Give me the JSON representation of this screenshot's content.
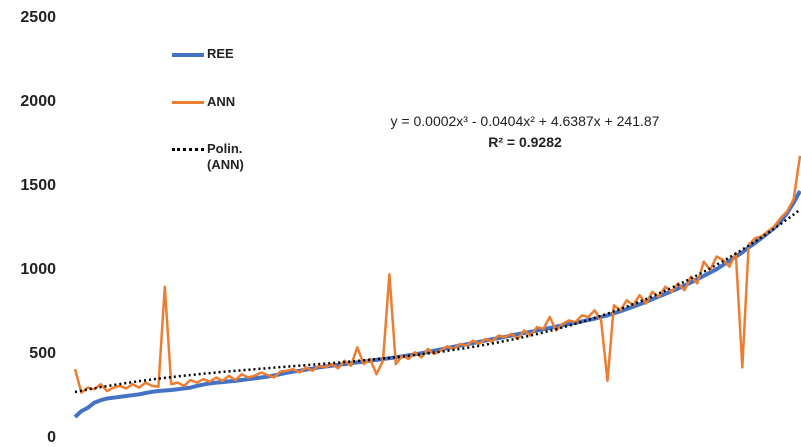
{
  "chart_data": {
    "type": "line",
    "ylim": [
      0,
      2500
    ],
    "yticks": [
      0,
      500,
      1000,
      1500,
      2000,
      2500
    ],
    "grid": false,
    "series": [
      {
        "name": "REE",
        "color": "#4472c4",
        "values": [
          125,
          160,
          180,
          210,
          225,
          235,
          240,
          245,
          250,
          255,
          260,
          268,
          275,
          280,
          283,
          286,
          290,
          295,
          300,
          310,
          318,
          325,
          330,
          333,
          337,
          340,
          345,
          350,
          355,
          360,
          365,
          372,
          380,
          388,
          395,
          400,
          407,
          413,
          420,
          425,
          430,
          435,
          440,
          445,
          450,
          455,
          460,
          465,
          470,
          475,
          480,
          486,
          492,
          498,
          505,
          512,
          520,
          527,
          535,
          542,
          550,
          557,
          565,
          572,
          580,
          588,
          595,
          602,
          610,
          618,
          625,
          632,
          640,
          648,
          655,
          663,
          670,
          678,
          686,
          694,
          702,
          710,
          720,
          730,
          742,
          755,
          768,
          782,
          796,
          810,
          826,
          842,
          858,
          874,
          890,
          908,
          926,
          945,
          965,
          985,
          1005,
          1030,
          1055,
          1080,
          1105,
          1135,
          1160,
          1190,
          1220,
          1250,
          1290,
          1340,
          1400,
          1470
        ]
      },
      {
        "name": "ANN",
        "color": "#ed7d31",
        "values": [
          410,
          270,
          300,
          290,
          320,
          280,
          300,
          310,
          295,
          320,
          300,
          330,
          310,
          305,
          900,
          320,
          330,
          310,
          345,
          330,
          350,
          335,
          360,
          340,
          370,
          345,
          380,
          360,
          370,
          390,
          375,
          360,
          395,
          400,
          410,
          390,
          420,
          400,
          430,
          420,
          440,
          415,
          460,
          430,
          540,
          440,
          470,
          380,
          460,
          975,
          440,
          490,
          470,
          510,
          480,
          530,
          500,
          520,
          545,
          530,
          560,
          550,
          580,
          560,
          590,
          575,
          610,
          600,
          620,
          590,
          640,
          610,
          660,
          650,
          720,
          640,
          680,
          700,
          690,
          730,
          720,
          760,
          700,
          340,
          790,
          760,
          820,
          790,
          850,
          800,
          870,
          840,
          900,
          870,
          920,
          880,
          960,
          920,
          1050,
          1000,
          1080,
          1060,
          1020,
          1100,
          420,
          1150,
          1190,
          1200,
          1230,
          1260,
          1310,
          1350,
          1420,
          1680
        ]
      }
    ],
    "trendline": {
      "name": "Polin. (ANN)",
      "color": "#000000",
      "equation": "y = 0.0002x³ - 0.0404x² + 4.6387x + 241.87",
      "r2": "R² = 0.9282"
    },
    "legend": "top-left"
  }
}
